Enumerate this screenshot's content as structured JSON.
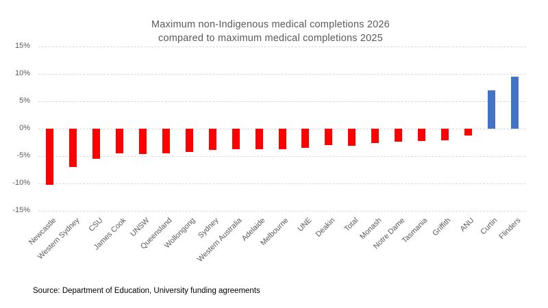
{
  "title": {
    "line1": "Maximum non-Indigenous medical completions  2026",
    "line2": "compared to maximum medical completions 2025"
  },
  "source_note": "Source: Department of Education, University funding agreements",
  "colors": {
    "negative_bar": "#ff0000",
    "positive_bar": "#4472c4",
    "gridline": "#d9d9d9",
    "axis_text": "#595959",
    "title_text": "#595959",
    "source_text": "#000000"
  },
  "chart_data": {
    "type": "bar",
    "title": "Maximum non-Indigenous medical completions 2026 compared to maximum medical completions 2025",
    "xlabel": "",
    "ylabel": "",
    "ylim": [
      -15,
      15
    ],
    "ytick_step": 5,
    "yticks": [
      {
        "value": 15,
        "label": "15%"
      },
      {
        "value": 10,
        "label": "10%"
      },
      {
        "value": 5,
        "label": "5%"
      },
      {
        "value": 0,
        "label": "0%"
      },
      {
        "value": -5,
        "label": "-5%"
      },
      {
        "value": -10,
        "label": "-10%"
      },
      {
        "value": -15,
        "label": "-15%"
      }
    ],
    "grid": true,
    "legend": false,
    "color_rule": "negative values red, positive values blue",
    "categories": [
      "Newcastle",
      "Western Sydney",
      "CSU",
      "James Cook",
      "UNSW",
      "Queensland",
      "Wollongong",
      "Sydney",
      "Western Australia",
      "Adelaide",
      "Melbourne",
      "UNE",
      "Deakin",
      "Total",
      "Monash",
      "Notre Dame",
      "Tasmania",
      "Griffith",
      "ANU",
      "Curtin",
      "Flinders"
    ],
    "values": [
      -10.2,
      -7.0,
      -5.5,
      -4.5,
      -4.6,
      -4.5,
      -4.3,
      -3.9,
      -3.8,
      -3.7,
      -3.7,
      -3.5,
      -3.0,
      -3.1,
      -2.6,
      -2.4,
      -2.2,
      -2.1,
      -1.2,
      7.0,
      9.5
    ]
  }
}
